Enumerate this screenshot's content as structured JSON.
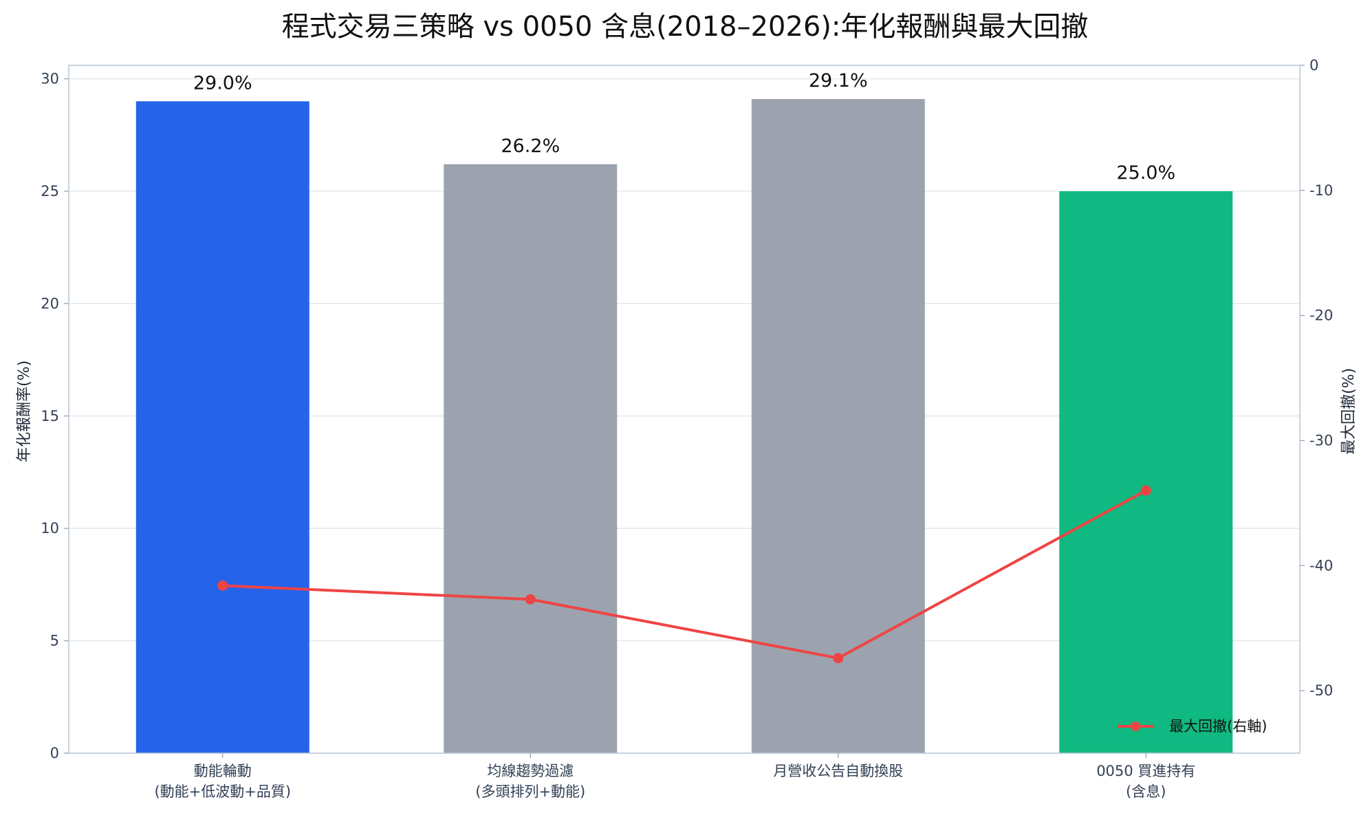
{
  "chart_data": {
    "type": "bar",
    "title": "程式交易三策略 vs 0050 含息(2018–2026):年化報酬與最大回撤",
    "categories": [
      [
        "動能輪動",
        "(動能+低波動+品質)"
      ],
      [
        "均線趨勢過濾",
        "(多頭排列+動能)"
      ],
      [
        "月營收公告自動換股"
      ],
      [
        "0050 買進持有",
        "(含息)"
      ]
    ],
    "bar_series": {
      "values": [
        29.0,
        26.2,
        29.1,
        25.0
      ],
      "labels": [
        "29.0%",
        "26.2%",
        "29.1%",
        "25.0%"
      ],
      "colors": [
        "#2563eb",
        "#9ca3af",
        "#9ca3af",
        "#10b981"
      ]
    },
    "line_series": {
      "name": "最大回撤(右軸)",
      "values": [
        -41.6,
        -42.7,
        -47.4,
        -34.0
      ],
      "color": "#ef4444",
      "axis": "right"
    },
    "ylabel": "年化報酬率(%)",
    "ylabel_right": "最大回撤(%)",
    "ylim": [
      0,
      30.6
    ],
    "ylim_right": [
      -55,
      0
    ],
    "yticks": [
      0,
      5,
      10,
      15,
      20,
      25,
      30
    ],
    "yticks_right": [
      0,
      -10,
      -20,
      -30,
      -40,
      -50
    ],
    "grid": true,
    "legend_position": "bottom-right"
  }
}
